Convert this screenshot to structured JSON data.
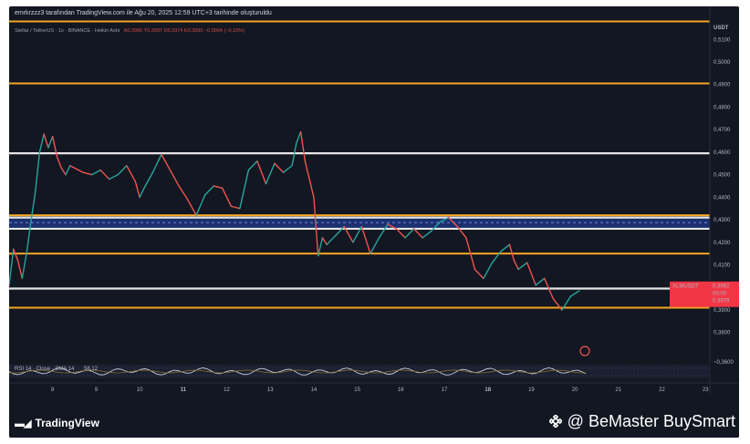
{
  "caption": "emrkrzzz3 tarafından TradingView.com ile Ağu 20, 2025 12:59 UTC+3 tarihinde oluşturuldu",
  "legend": {
    "symbol": "Stellar / TetherUS · 1s · BINANCE · Heikin Ashi",
    "values": "A0,3990 Y0,3997 D0,3974 K0,3990 −0,0004 (−0,10%)"
  },
  "colors": {
    "background": "#131722",
    "candle_up": "#26a69a",
    "candle_down": "#ef5350",
    "orange_level": "#f5a623",
    "white_level": "#e6e6e6",
    "zone_fill": "#1e3a8a",
    "price_label": "#f23645"
  },
  "chart_data": {
    "type": "line",
    "title": "",
    "currency": "USDT",
    "y_ticks": [
      "0,5100",
      "0,5000",
      "0,4900",
      "0,4800",
      "0,4700",
      "0,4600",
      "0,4500",
      "0,4400",
      "0,4300",
      "0,4200",
      "0,4100",
      "0,3900",
      "0,3800"
    ],
    "x_ticks": [
      "8",
      "9",
      "10",
      "11",
      "12",
      "13",
      "14",
      "15",
      "16",
      "17",
      "18",
      "19",
      "20",
      "21",
      "22",
      "23"
    ],
    "x_ticks_bold": [
      "11",
      "18"
    ],
    "ylim": [
      0.373,
      0.519
    ],
    "horizontal_levels": [
      {
        "price": 0.518,
        "color": "orange"
      },
      {
        "price": 0.4905,
        "color": "orange"
      },
      {
        "price": 0.4595,
        "color": "white"
      },
      {
        "price": 0.432,
        "color": "orange"
      },
      {
        "price": 0.431,
        "color": "white"
      },
      {
        "price": 0.426,
        "color": "white"
      },
      {
        "price": 0.415,
        "color": "orange"
      },
      {
        "price": 0.3995,
        "color": "white"
      },
      {
        "price": 0.391,
        "color": "orange"
      }
    ],
    "zone": [
      0.426,
      0.4315
    ],
    "series": [
      {
        "x": [
          7.5,
          7.6,
          7.7,
          7.8,
          7.9,
          8.0,
          8.1,
          8.2,
          8.3,
          8.4,
          8.5,
          8.6,
          8.7,
          8.8,
          8.9,
          9.0,
          9.2,
          9.4,
          9.6,
          9.8,
          10.0,
          10.2,
          10.4,
          10.5,
          10.6,
          10.8,
          11.0,
          11.2,
          11.4,
          11.6,
          11.8,
          12.0,
          12.2,
          12.4,
          12.6,
          12.8,
          13.0,
          13.2,
          13.4,
          13.6,
          13.8,
          14.0,
          14.1,
          14.2,
          14.3,
          14.4,
          14.5,
          14.6,
          14.7,
          14.8,
          14.9,
          15.0,
          15.2,
          15.4,
          15.6,
          15.8,
          16.0,
          16.2,
          16.4,
          16.6,
          16.8,
          17.0,
          17.2,
          17.4,
          17.6,
          17.8,
          18.0,
          18.2,
          18.4,
          18.6,
          18.8,
          19.0,
          19.1,
          19.2,
          19.4,
          19.6,
          19.8,
          20.0,
          20.2,
          20.4,
          20.6
        ],
        "values": [
          0.401,
          0.417,
          0.412,
          0.404,
          0.415,
          0.429,
          0.442,
          0.46,
          0.468,
          0.462,
          0.467,
          0.458,
          0.453,
          0.45,
          0.454,
          0.453,
          0.451,
          0.45,
          0.452,
          0.448,
          0.45,
          0.454,
          0.447,
          0.44,
          0.444,
          0.451,
          0.459,
          0.452,
          0.445,
          0.439,
          0.432,
          0.441,
          0.445,
          0.444,
          0.436,
          0.435,
          0.452,
          0.456,
          0.446,
          0.455,
          0.451,
          0.454,
          0.464,
          0.469,
          0.456,
          0.448,
          0.44,
          0.414,
          0.422,
          0.419,
          0.421,
          0.423,
          0.427,
          0.42,
          0.427,
          0.415,
          0.422,
          0.428,
          0.426,
          0.422,
          0.426,
          0.422,
          0.425,
          0.429,
          0.431,
          0.427,
          0.422,
          0.408,
          0.404,
          0.411,
          0.416,
          0.419,
          0.412,
          0.408,
          0.411,
          0.401,
          0.404,
          0.395,
          0.39,
          0.396,
          0.3985
        ]
      }
    ],
    "price_label": {
      "symbol": "XLMUSDT",
      "price": "0,3992",
      "countdown": "00:00",
      "low": "0,3979"
    },
    "lower_price_tick": "~0,3600",
    "indicator": {
      "name": "RSI 14 · Close · SMA 14",
      "value": "58,12"
    }
  },
  "branding": {
    "tradingview": "TradingView",
    "watermark": "@ BeMaster BuySmart"
  }
}
